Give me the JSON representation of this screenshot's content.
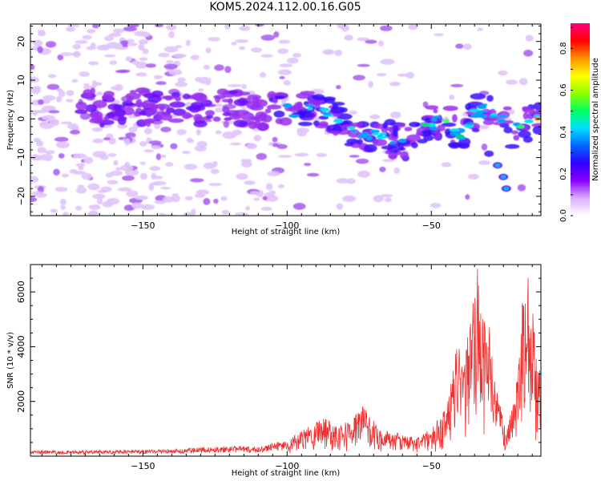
{
  "title": "KOM5.2024.112.00.16.G05",
  "chart_data": [
    {
      "type": "heatmap",
      "xlabel": "Height of straight line (km)",
      "ylabel": "Frequency (Hz)",
      "xlim": [
        -189,
        -12
      ],
      "ylim": [
        -25,
        24.5
      ],
      "xticks": [
        -150,
        -100,
        -50
      ],
      "yticks": [
        20,
        10,
        0,
        -10,
        -20
      ],
      "colorbar": {
        "label": "Normalized spectral amplitude",
        "range": [
          0,
          0.92
        ],
        "ticks": [
          "0.0",
          "0.2",
          "0.4",
          "0.6",
          "0.8"
        ],
        "colors": [
          "#ffffff",
          "#d9b0ff",
          "#8a00ff",
          "#3000ff",
          "#0066ff",
          "#00e0ff",
          "#00ff60",
          "#90ff00",
          "#ffff00",
          "#ff9000",
          "#ff0000",
          "#ff0080"
        ]
      },
      "ridge": [
        {
          "x": -168,
          "y": 3
        },
        {
          "x": -150,
          "y": 3
        },
        {
          "x": -135,
          "y": 3
        },
        {
          "x": -120,
          "y": 3
        },
        {
          "x": -110,
          "y": 2
        },
        {
          "x": -100,
          "y": 2
        },
        {
          "x": -92,
          "y": 2.5
        },
        {
          "x": -85,
          "y": 1.5
        },
        {
          "x": -78,
          "y": -3
        },
        {
          "x": -70,
          "y": -4.5
        },
        {
          "x": -64,
          "y": -5
        },
        {
          "x": -58,
          "y": -7
        },
        {
          "x": -52,
          "y": -2
        },
        {
          "x": -45,
          "y": 0
        },
        {
          "x": -40,
          "y": -4
        },
        {
          "x": -35,
          "y": 1
        },
        {
          "x": -30,
          "y": 3
        },
        {
          "x": -22,
          "y": -3
        },
        {
          "x": -16,
          "y": -1
        },
        {
          "x": -12,
          "y": 0
        }
      ],
      "branch": [
        {
          "x": -30,
          "y": -9
        },
        {
          "x": -27,
          "y": -12
        },
        {
          "x": -25,
          "y": -15
        },
        {
          "x": -24,
          "y": -18
        }
      ]
    },
    {
      "type": "line",
      "xlabel": "Height of straight line (km)",
      "ylabel": "SNR (10 * v/v)",
      "xlim": [
        -189,
        -12
      ],
      "ylim": [
        0,
        7000
      ],
      "xticks": [
        -150,
        -100,
        -50
      ],
      "yticks": [
        2000,
        4000,
        6000
      ],
      "color": "#ef3030",
      "envelope": [
        {
          "x": -189,
          "y": 200
        },
        {
          "x": -160,
          "y": 220
        },
        {
          "x": -140,
          "y": 260
        },
        {
          "x": -120,
          "y": 380
        },
        {
          "x": -110,
          "y": 350
        },
        {
          "x": -100,
          "y": 600
        },
        {
          "x": -95,
          "y": 900
        },
        {
          "x": -88,
          "y": 1500
        },
        {
          "x": -83,
          "y": 1200
        },
        {
          "x": -78,
          "y": 1300
        },
        {
          "x": -74,
          "y": 1900
        },
        {
          "x": -68,
          "y": 1000
        },
        {
          "x": -60,
          "y": 800
        },
        {
          "x": -55,
          "y": 700
        },
        {
          "x": -50,
          "y": 1000
        },
        {
          "x": -46,
          "y": 1600
        },
        {
          "x": -43,
          "y": 2800
        },
        {
          "x": -41,
          "y": 4200
        },
        {
          "x": -39,
          "y": 3500
        },
        {
          "x": -36,
          "y": 5200
        },
        {
          "x": -34,
          "y": 7000
        },
        {
          "x": -32,
          "y": 5000
        },
        {
          "x": -30,
          "y": 4900
        },
        {
          "x": -28,
          "y": 3000
        },
        {
          "x": -26,
          "y": 1800
        },
        {
          "x": -24,
          "y": 900
        },
        {
          "x": -22,
          "y": 1800
        },
        {
          "x": -20,
          "y": 3200
        },
        {
          "x": -18,
          "y": 6600
        },
        {
          "x": -16,
          "y": 6500
        },
        {
          "x": -14,
          "y": 4500
        },
        {
          "x": -13,
          "y": 3300
        },
        {
          "x": -12,
          "y": 3500
        }
      ]
    }
  ]
}
